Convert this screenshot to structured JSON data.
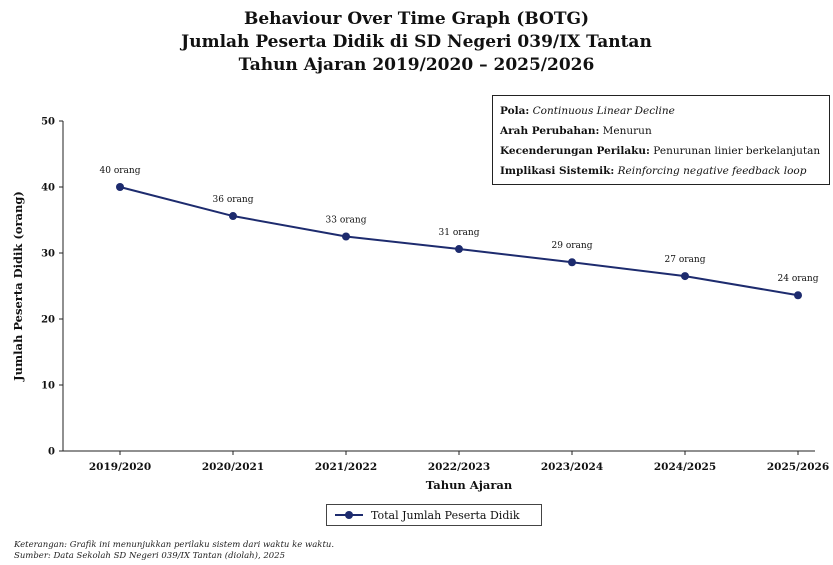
{
  "chart_data": {
    "type": "line",
    "title_lines": [
      "Behaviour Over Time Graph (BOTG)",
      "Jumlah Peserta Didik di SD Negeri 039/IX Tantan",
      "Tahun Ajaran 2019/2020 – 2025/2026"
    ],
    "xlabel": "Tahun Ajaran",
    "ylabel": "Jumlah Peserta Didik (orang)",
    "ylim": [
      0,
      50
    ],
    "yticks": [
      0,
      10,
      20,
      30,
      40,
      50
    ],
    "categories": [
      "2019/2020",
      "2020/2021",
      "2021/2022",
      "2022/2023",
      "2023/2024",
      "2024/2025",
      "2025/2026"
    ],
    "series": [
      {
        "name": "Total Jumlah Peserta Didik",
        "values": [
          40,
          35.6,
          32.5,
          30.6,
          28.6,
          26.5,
          23.6
        ],
        "labels": [
          "40 orang",
          "36 orang",
          "33 orang",
          "31 orang",
          "29 orang",
          "27 orang",
          "24 orang"
        ],
        "color": "#1d2b6e"
      }
    ],
    "grid": false,
    "legend_position": "bottom"
  },
  "infobox": {
    "pola_label": "Pola:",
    "pola_value": "Continuous Linear Decline",
    "arah_label": "Arah Perubahan:",
    "arah_value": "Menurun",
    "kecenderungan_label": "Kecenderungan Perilaku:",
    "kecenderungan_value": "Penurunan linier berkelanjutan",
    "implikasi_label": "Implikasi Sistemik:",
    "implikasi_value": "Reinforcing negative feedback loop"
  },
  "notes": {
    "keterangan": "Keterangan: Grafik ini menunjukkan perilaku sistem dari waktu ke waktu.",
    "sumber": "Sumber: Data Sekolah SD Negeri 039/IX Tantan (diolah), 2025"
  }
}
